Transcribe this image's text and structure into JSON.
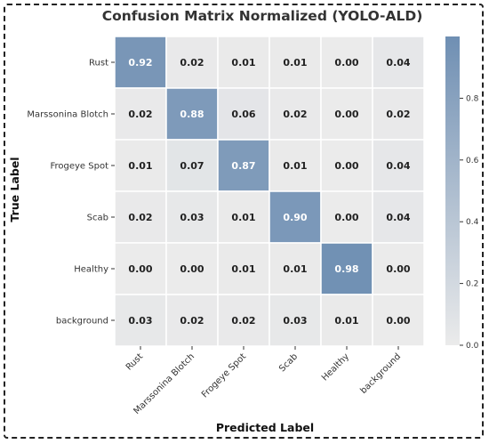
{
  "chart_data": {
    "type": "heatmap",
    "title": "Confusion Matrix Normalized (YOLO-ALD)",
    "xlabel": "Predicted Label",
    "ylabel": "True Label",
    "rows": [
      "Rust",
      "Marssonina Blotch",
      "Frogeye Spot",
      "Scab",
      "Healthy",
      "background"
    ],
    "columns": [
      "Rust",
      "Marssonina Blotch",
      "Frogeye Spot",
      "Scab",
      "Healthy",
      "background"
    ],
    "values": [
      [
        0.92,
        0.02,
        0.01,
        0.01,
        0.0,
        0.04
      ],
      [
        0.02,
        0.88,
        0.06,
        0.02,
        0.0,
        0.02
      ],
      [
        0.01,
        0.07,
        0.87,
        0.01,
        0.0,
        0.04
      ],
      [
        0.02,
        0.03,
        0.01,
        0.9,
        0.0,
        0.04
      ],
      [
        0.0,
        0.0,
        0.01,
        0.01,
        0.98,
        0.0
      ],
      [
        0.03,
        0.02,
        0.02,
        0.03,
        0.01,
        0.0
      ]
    ],
    "colorbar": {
      "range": [
        0.0,
        1.0
      ],
      "ticks": [
        "0.0",
        "0.2",
        "0.4",
        "0.6",
        "0.8"
      ]
    },
    "colors": {
      "low": "#ebebeb",
      "high": "#6f8fb3",
      "cell_border": "#ffffff"
    }
  }
}
